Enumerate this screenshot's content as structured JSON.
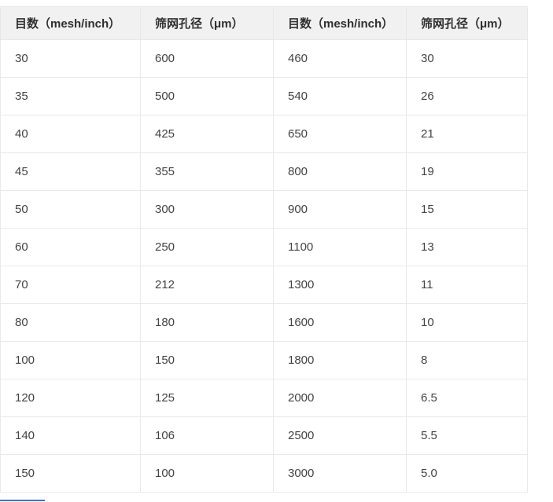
{
  "table": {
    "title": "mesh-aperture-conversion-table",
    "headers": [
      "目数（mesh/inch）",
      "筛网孔径（μm）",
      "目数（mesh/inch）",
      "筛网孔径（μm）"
    ],
    "rows": [
      [
        "30",
        "600",
        "460",
        "30"
      ],
      [
        "35",
        "500",
        "540",
        "26"
      ],
      [
        "40",
        "425",
        "650",
        "21"
      ],
      [
        "45",
        "355",
        "800",
        "19"
      ],
      [
        "50",
        "300",
        "900",
        "15"
      ],
      [
        "60",
        "250",
        "1100",
        "13"
      ],
      [
        "70",
        "212",
        "1300",
        "11"
      ],
      [
        "80",
        "180",
        "1600",
        "10"
      ],
      [
        "100",
        "150",
        "1800",
        "8"
      ],
      [
        "120",
        "125",
        "2000",
        "6.5"
      ],
      [
        "140",
        "106",
        "2500",
        "5.5"
      ],
      [
        "150",
        "100",
        "3000",
        "5.0"
      ]
    ]
  },
  "colors": {
    "page_background": "#ffffff",
    "header_background": "#f1f1f1",
    "grid_border": "#e7e7e7",
    "header_text": "#2f2f2f",
    "cell_text": "#434343",
    "accent_line": "#4472c4"
  }
}
